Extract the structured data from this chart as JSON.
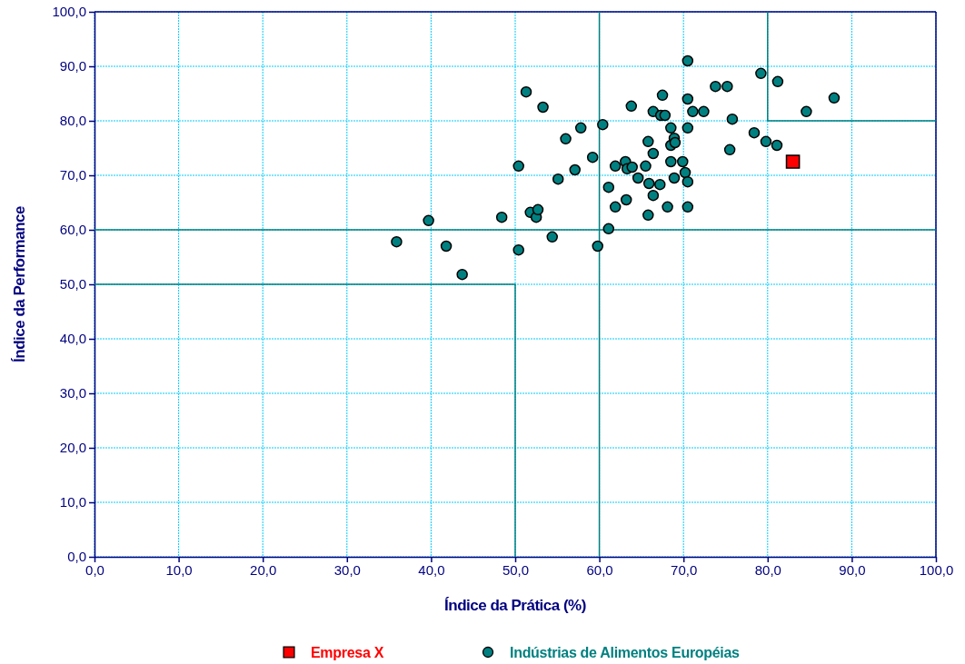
{
  "chart_data": {
    "type": "scatter",
    "xlabel": "Índice da Prática (%)",
    "ylabel": "Índice da Performance",
    "xlim": [
      0,
      100
    ],
    "ylim": [
      0,
      100
    ],
    "xticks": [
      {
        "value": 0,
        "label": "0,0"
      },
      {
        "value": 10,
        "label": "10,0"
      },
      {
        "value": 20,
        "label": "20,0"
      },
      {
        "value": 30,
        "label": "30,0"
      },
      {
        "value": 40,
        "label": "40,0"
      },
      {
        "value": 50,
        "label": "50,0"
      },
      {
        "value": 60,
        "label": "60,0"
      },
      {
        "value": 70,
        "label": "70,0"
      },
      {
        "value": 80,
        "label": "80,0"
      },
      {
        "value": 90,
        "label": "90,0"
      },
      {
        "value": 100,
        "label": "100,0"
      }
    ],
    "yticks": [
      {
        "value": 0,
        "label": "0,0"
      },
      {
        "value": 10,
        "label": "10,0"
      },
      {
        "value": 20,
        "label": "20,0"
      },
      {
        "value": 30,
        "label": "30,0"
      },
      {
        "value": 40,
        "label": "40,0"
      },
      {
        "value": 50,
        "label": "50,0"
      },
      {
        "value": 60,
        "label": "60,0"
      },
      {
        "value": 70,
        "label": "70,0"
      },
      {
        "value": 80,
        "label": "80,0"
      },
      {
        "value": 90,
        "label": "90,0"
      },
      {
        "value": 100,
        "label": "100,0"
      }
    ],
    "grid": true,
    "legend": "bottom",
    "series": [
      {
        "name": "Empresa X",
        "marker": "square",
        "color": "#ff0000",
        "x": [
          83.0
        ],
        "values": [
          72.5
        ]
      },
      {
        "name": "Indústrias de Alimentos Européias",
        "marker": "circle",
        "color": "#008080",
        "x": [
          35.9,
          39.7,
          41.8,
          43.7,
          48.4,
          50.4,
          50.4,
          51.3,
          51.8,
          52.5,
          52.7,
          53.3,
          54.4,
          55.1,
          56.0,
          57.1,
          57.8,
          59.2,
          59.8,
          60.4,
          61.1,
          61.1,
          61.9,
          61.9,
          63.1,
          63.2,
          63.3,
          63.9,
          63.8,
          64.6,
          65.5,
          65.8,
          65.8,
          65.9,
          66.4,
          66.4,
          66.4,
          67.2,
          67.3,
          67.5,
          67.8,
          68.1,
          68.5,
          68.5,
          68.5,
          68.9,
          69.0,
          68.9,
          69.9,
          70.2,
          70.5,
          70.5,
          70.5,
          70.5,
          70.5,
          71.1,
          72.4,
          73.8,
          75.2,
          75.5,
          75.8,
          78.4,
          79.2,
          79.8,
          81.1,
          81.2,
          84.6,
          87.9
        ],
        "values": [
          57.8,
          61.7,
          57.0,
          51.8,
          62.3,
          71.7,
          56.3,
          85.3,
          63.2,
          62.3,
          63.7,
          82.5,
          58.7,
          69.3,
          76.7,
          71.0,
          78.7,
          73.3,
          57.0,
          79.3,
          67.8,
          60.2,
          71.7,
          64.2,
          72.5,
          65.5,
          71.2,
          71.5,
          82.7,
          69.5,
          71.7,
          76.2,
          62.7,
          68.5,
          74.0,
          66.3,
          81.7,
          68.3,
          81.0,
          84.7,
          81.0,
          64.2,
          78.7,
          75.5,
          72.5,
          76.8,
          76.0,
          69.5,
          72.5,
          70.5,
          78.7,
          68.8,
          64.2,
          84.0,
          91.0,
          81.7,
          81.7,
          86.3,
          86.3,
          74.7,
          80.3,
          77.8,
          88.7,
          76.2,
          75.5,
          87.2,
          81.7,
          84.2
        ]
      },
      {
        "type": "line",
        "marker": "none",
        "color": "#008080",
        "x": [
          0,
          50,
          50
        ],
        "values": [
          50,
          50,
          0
        ]
      },
      {
        "type": "line",
        "marker": "none",
        "color": "#008080",
        "x": [
          80,
          80,
          100
        ],
        "values": [
          100,
          80,
          80
        ]
      },
      {
        "type": "line",
        "marker": "none",
        "color": "#008080",
        "x": [
          60,
          60
        ],
        "values": [
          0,
          100
        ]
      },
      {
        "type": "line",
        "marker": "none",
        "color": "#008080",
        "x": [
          0,
          100
        ],
        "values": [
          60,
          60
        ]
      }
    ]
  }
}
